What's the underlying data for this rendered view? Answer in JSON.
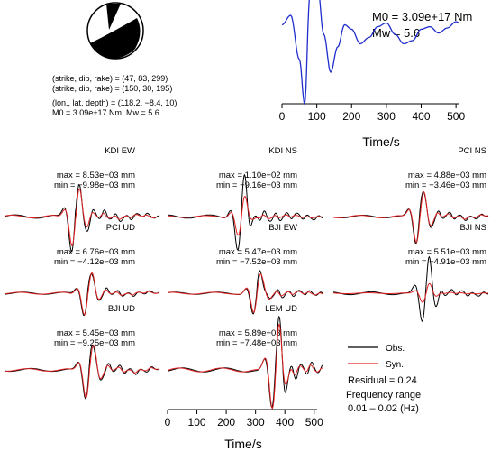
{
  "source_params": {
    "line1": "(strike, dip, rake) = (47, 83, 299)",
    "line2": "(strike, dip, rake) = (150, 30, 195)",
    "line3": "(lon., lat, depth) = (118.2, −8.4, 10)",
    "line4": "M0 = 3.09e+17 Nm, Mw = 5.6"
  },
  "stf": {
    "m0_label": "M0 = 3.09e+17 Nm",
    "mw_label": "Mw = 5.6",
    "xlabel": "Time/s",
    "xticks": [
      "0",
      "100",
      "200",
      "300",
      "400",
      "500"
    ]
  },
  "panels": [
    {
      "name": "KDI EW",
      "max": "max = 8.53e−03 mm",
      "min": "min = −9.98e−03 mm"
    },
    {
      "name": "KDI NS",
      "max": "max = 1.10e−02 mm",
      "min": "min = −9.16e−03 mm"
    },
    {
      "name": "PCI NS",
      "max": "max = 4.88e−03 mm",
      "min": "min = −3.46e−03 mm"
    },
    {
      "name": "PCI UD",
      "max": "max = 6.76e−03 mm",
      "min": "min = −4.12e−03 mm"
    },
    {
      "name": "BJI EW",
      "max": "max = 5.47e−03 mm",
      "min": "min = −7.52e−03 mm"
    },
    {
      "name": "BJI NS",
      "max": "max = 5.51e−03 mm",
      "min": "min = −4.91e−03 mm"
    },
    {
      "name": "BJI UD",
      "max": "max = 5.45e−03 mm",
      "min": "min = −9.25e−03 mm"
    },
    {
      "name": "LEM UD",
      "max": "max = 5.89e−03 mm",
      "min": "min = −7.48e−03 mm"
    }
  ],
  "legend": {
    "obs": "Obs.",
    "syn": "Syn.",
    "residual": "Residual = 0.24",
    "freq_title": "Frequency range",
    "freq_value": "0.01 – 0.02 (Hz)"
  },
  "bottom_axis": {
    "xlabel": "Time/s",
    "xticks": [
      "0",
      "100",
      "200",
      "300",
      "400",
      "500"
    ]
  },
  "colors": {
    "stf": "#1f2ecc",
    "obs": "#000000",
    "syn": "#e02020"
  },
  "chart_data": [
    {
      "type": "line",
      "role": "source-time-function",
      "x": [
        0,
        25,
        50,
        65,
        80,
        100,
        120,
        140,
        160,
        180,
        200,
        225,
        250,
        275,
        300,
        325,
        350,
        375,
        400,
        425,
        450,
        475,
        500,
        510
      ],
      "y": [
        0.25,
        0.4,
        -0.3,
        -1.0,
        0.7,
        1.0,
        0.1,
        -0.5,
        -0.1,
        0.25,
        0.18,
        -0.05,
        0.05,
        0.22,
        0.28,
        0.1,
        -0.05,
        0.0,
        0.18,
        0.22,
        0.12,
        0.2,
        0.3,
        0.28
      ],
      "xlim": [
        0,
        510
      ],
      "xlabel": "Time/s"
    },
    {
      "type": "line",
      "role": "waveform-grid",
      "stations": [
        "KDI EW",
        "KDI NS",
        "PCI NS",
        "PCI UD",
        "BJI EW",
        "BJI NS",
        "BJI UD",
        "LEM UD"
      ],
      "max_mm": [
        0.00853,
        0.011,
        0.00488,
        0.00676,
        0.00547,
        0.00551,
        0.00545,
        0.00589
      ],
      "min_mm": [
        -0.00998,
        -0.00916,
        -0.00346,
        -0.00412,
        -0.00752,
        -0.00491,
        -0.00925,
        -0.00748
      ],
      "series": [
        {
          "name": "Obs."
        },
        {
          "name": "Syn."
        }
      ],
      "residual": 0.24,
      "xlim": [
        0,
        510
      ],
      "xlabel": "Time/s"
    }
  ]
}
